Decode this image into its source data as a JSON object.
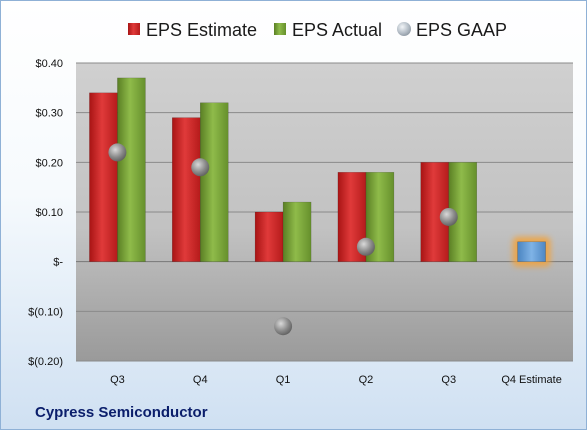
{
  "company": "Cypress Semiconductor",
  "colors": {
    "estimate": "#d32a2a",
    "actual": "#7aa33c",
    "gaap": "#8c8c8c",
    "forecast": "#5b9bd5",
    "forecast_glow": "#f2a23a"
  },
  "chart_data": {
    "type": "bar",
    "categories": [
      "Q3",
      "Q4",
      "Q1",
      "Q2",
      "Q3",
      "Q4 Estimate"
    ],
    "series": [
      {
        "name": "EPS Estimate",
        "values": [
          0.34,
          0.29,
          0.1,
          0.18,
          0.2,
          null
        ]
      },
      {
        "name": "EPS Actual",
        "values": [
          0.37,
          0.32,
          0.12,
          0.18,
          0.2,
          null
        ]
      },
      {
        "name": "EPS GAAP",
        "values": [
          0.22,
          0.19,
          -0.13,
          0.03,
          0.09,
          null
        ]
      }
    ],
    "forecast": {
      "category": "Q4 Estimate",
      "value": 0.04
    },
    "ylim": [
      -0.2,
      0.4
    ],
    "yticks": [
      {
        "value": 0.4,
        "label": "$0.40"
      },
      {
        "value": 0.3,
        "label": "$0.30"
      },
      {
        "value": 0.2,
        "label": "$0.20"
      },
      {
        "value": 0.1,
        "label": "$0.10"
      },
      {
        "value": 0.0,
        "label": "$-"
      },
      {
        "value": -0.1,
        "label": "$(0.10)"
      },
      {
        "value": -0.2,
        "label": "$(0.20)"
      }
    ],
    "legend_position": "top",
    "grid": true
  }
}
